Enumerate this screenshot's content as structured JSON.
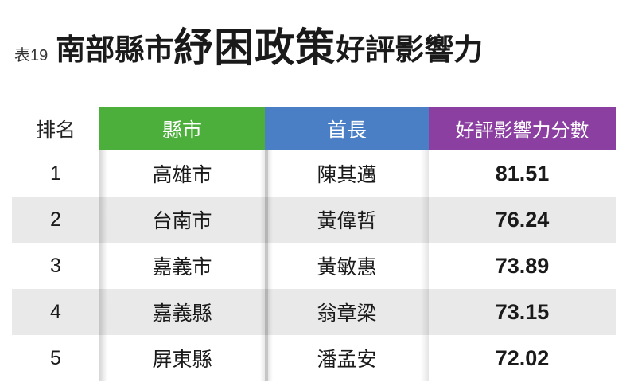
{
  "title": {
    "label": "表19",
    "prefix": "南部縣市",
    "emphasis": "紓困政策",
    "suffix": "好評影響力"
  },
  "table": {
    "headers": {
      "rank": "排名",
      "county": "縣市",
      "head": "首長",
      "score": "好評影響力分數"
    },
    "header_colors": {
      "county": "#4caf3c",
      "head": "#4a7fc5",
      "score": "#8b3fa0"
    },
    "rows": [
      {
        "rank": "1",
        "county": "高雄市",
        "head": "陳其邁",
        "score": "81.51"
      },
      {
        "rank": "2",
        "county": "台南市",
        "head": "黃偉哲",
        "score": "76.24"
      },
      {
        "rank": "3",
        "county": "嘉義市",
        "head": "黃敏惠",
        "score": "73.89"
      },
      {
        "rank": "4",
        "county": "嘉義縣",
        "head": "翁章梁",
        "score": "73.15"
      },
      {
        "rank": "5",
        "county": "屏東縣",
        "head": "潘孟安",
        "score": "72.02"
      }
    ]
  }
}
